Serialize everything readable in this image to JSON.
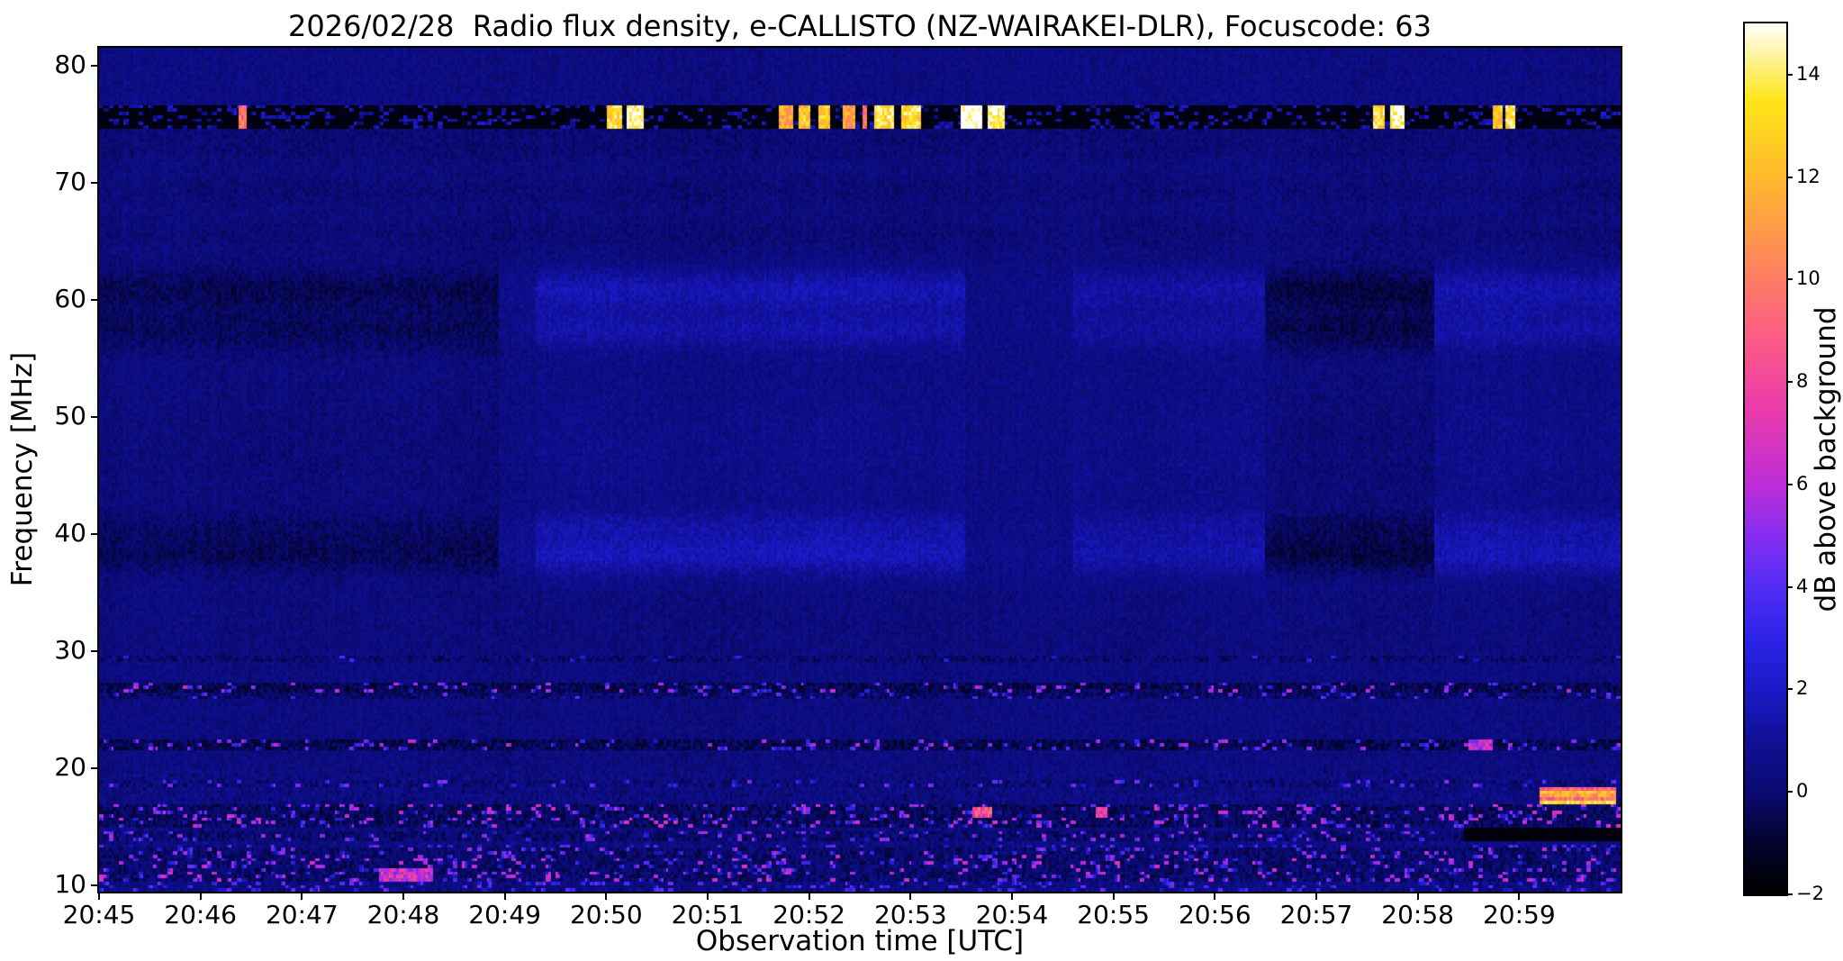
{
  "chart_data": {
    "type": "heatmap",
    "title": "2026/02/28  Radio flux density, e-CALLISTO (NZ-WAIRAKEI-DLR), Focuscode: 63",
    "xlabel": "Observation time [UTC]",
    "ylabel": "Frequency [MHz]",
    "colorbar_label": "dB above background",
    "x_tick_labels": [
      "20:45",
      "20:46",
      "20:47",
      "20:48",
      "20:49",
      "20:50",
      "20:51",
      "20:52",
      "20:53",
      "20:54",
      "20:55",
      "20:56",
      "20:57",
      "20:58",
      "20:59"
    ],
    "x_span_minutes": 15,
    "y_tick_values": [
      10,
      20,
      30,
      40,
      50,
      60,
      70,
      80
    ],
    "y_range_mhz": [
      9.5,
      81.5
    ],
    "value_range_db": [
      -2,
      15
    ],
    "colorbar_tick_values": [
      -2,
      0,
      2,
      4,
      6,
      8,
      10,
      12,
      14
    ],
    "colorbar_tick_labels": [
      "−2",
      "0",
      "2",
      "4",
      "6",
      "8",
      "10",
      "12",
      "14"
    ],
    "background_level_db": 0.4,
    "colormap": "black-blue-violet-pink-orange-yellow-white",
    "colormap_stops": [
      [
        -2,
        "#000000"
      ],
      [
        -1,
        "#03032d"
      ],
      [
        0,
        "#0a0a73"
      ],
      [
        1,
        "#101096"
      ],
      [
        2,
        "#1a1ac8"
      ],
      [
        3,
        "#2d23e6"
      ],
      [
        4,
        "#552df5"
      ],
      [
        5,
        "#872df0"
      ],
      [
        6,
        "#be2dd7"
      ],
      [
        7.5,
        "#eb3caa"
      ],
      [
        9,
        "#fc5f82"
      ],
      [
        10.5,
        "#ff8c55"
      ],
      [
        12,
        "#ffb92d"
      ],
      [
        13.5,
        "#ffe419"
      ],
      [
        15,
        "#ffffff"
      ]
    ],
    "bands": [
      {
        "center_mhz": 60.8,
        "halfwidth_mhz": 1.8,
        "gain": 1.25
      },
      {
        "center_mhz": 57.4,
        "halfwidth_mhz": 1.7,
        "gain": 1.0
      },
      {
        "center_mhz": 38.2,
        "halfwidth_mhz": 1.6,
        "gain": 1.25
      },
      {
        "center_mhz": 40.6,
        "halfwidth_mhz": 1.3,
        "gain": 0.7
      },
      {
        "center_mhz": 47.0,
        "halfwidth_mhz": 8.0,
        "gain": 0.3
      }
    ],
    "band_time_profile": [
      {
        "t0": 0,
        "t1": 3.95,
        "amp": -0.6
      },
      {
        "t0": 3.95,
        "t1": 4.3,
        "amp": 0.35
      },
      {
        "t0": 4.3,
        "t1": 8.55,
        "amp": 1.0
      },
      {
        "t0": 8.55,
        "t1": 9.6,
        "amp": 0.15
      },
      {
        "t0": 9.6,
        "t1": 11.5,
        "amp": 0.7
      },
      {
        "t0": 11.5,
        "t1": 13.15,
        "amp": -0.8
      },
      {
        "t0": 13.15,
        "t1": 15.01,
        "amp": 0.9
      }
    ],
    "rfi_band_75mhz": {
      "center_mhz": 75.7,
      "halfwidth_mhz": 1.0,
      "base_db": -1.85,
      "bursts": [
        [
          1.38,
          1.44,
          9
        ],
        [
          5.02,
          5.16,
          13
        ],
        [
          5.2,
          5.36,
          14
        ],
        [
          6.7,
          6.85,
          11
        ],
        [
          6.9,
          7.02,
          12
        ],
        [
          7.08,
          7.2,
          12
        ],
        [
          7.34,
          7.45,
          11
        ],
        [
          7.52,
          7.58,
          9
        ],
        [
          7.65,
          7.85,
          13
        ],
        [
          7.9,
          8.1,
          13
        ],
        [
          8.5,
          8.72,
          15
        ],
        [
          8.76,
          8.92,
          14
        ],
        [
          12.55,
          12.68,
          13
        ],
        [
          12.72,
          12.88,
          14
        ],
        [
          13.75,
          13.83,
          12
        ],
        [
          13.87,
          13.97,
          13
        ]
      ]
    },
    "rfi_lines": [
      {
        "f_mhz": 29.3,
        "halfwidth_mhz": 0.22,
        "density": 0.15,
        "peak_db": 2.5,
        "floor_db": -0.7
      },
      {
        "f_mhz": 27.0,
        "halfwidth_mhz": 0.45,
        "density": 0.55,
        "peak_db": 5.0,
        "floor_db": -1.2
      },
      {
        "f_mhz": 26.2,
        "halfwidth_mhz": 0.25,
        "density": 0.3,
        "peak_db": 3.5,
        "floor_db": -0.8
      },
      {
        "f_mhz": 22.1,
        "halfwidth_mhz": 0.4,
        "density": 0.5,
        "peak_db": 5.0,
        "floor_db": -1.2
      },
      {
        "f_mhz": 18.6,
        "halfwidth_mhz": 0.3,
        "density": 0.35,
        "peak_db": 4.0,
        "floor_db": -0.6
      },
      {
        "f_mhz": 16.4,
        "halfwidth_mhz": 0.45,
        "density": 0.6,
        "peak_db": 5.5,
        "floor_db": -1.0
      },
      {
        "f_mhz": 15.3,
        "halfwidth_mhz": 0.4,
        "density": 0.6,
        "peak_db": 5.5,
        "floor_db": -1.0
      },
      {
        "f_mhz": 14.3,
        "halfwidth_mhz": 0.35,
        "density": 0.5,
        "peak_db": 4.5,
        "floor_db": -0.8
      },
      {
        "f_mhz": 12.9,
        "halfwidth_mhz": 0.4,
        "density": 0.55,
        "peak_db": 5.0,
        "floor_db": -0.8
      },
      {
        "f_mhz": 11.8,
        "halfwidth_mhz": 0.45,
        "density": 0.6,
        "peak_db": 5.5,
        "floor_db": -0.8
      },
      {
        "f_mhz": 10.8,
        "halfwidth_mhz": 0.5,
        "density": 0.65,
        "peak_db": 5.5,
        "floor_db": -0.8
      }
    ],
    "events": [
      {
        "type": "bright-burst",
        "t0": 14.2,
        "t1": 14.95,
        "f0_mhz": 17.0,
        "f1_mhz": 18.3,
        "peak_db": 11
      },
      {
        "type": "dropout",
        "t0": 13.45,
        "t1": 15.01,
        "f0_mhz": 13.9,
        "f1_mhz": 15.0,
        "peak_db": -1.9
      },
      {
        "type": "spot",
        "t0": 8.62,
        "t1": 8.8,
        "f0_mhz": 15.9,
        "f1_mhz": 16.7,
        "peak_db": 8
      },
      {
        "type": "spot",
        "t0": 9.82,
        "t1": 9.95,
        "f0_mhz": 15.9,
        "f1_mhz": 16.6,
        "peak_db": 7
      },
      {
        "type": "patch",
        "t0": 2.75,
        "t1": 3.3,
        "f0_mhz": 10.4,
        "f1_mhz": 11.6,
        "peak_db": 6
      },
      {
        "type": "spot",
        "t0": 13.5,
        "t1": 13.75,
        "f0_mhz": 21.7,
        "f1_mhz": 22.6,
        "peak_db": 6
      }
    ]
  }
}
